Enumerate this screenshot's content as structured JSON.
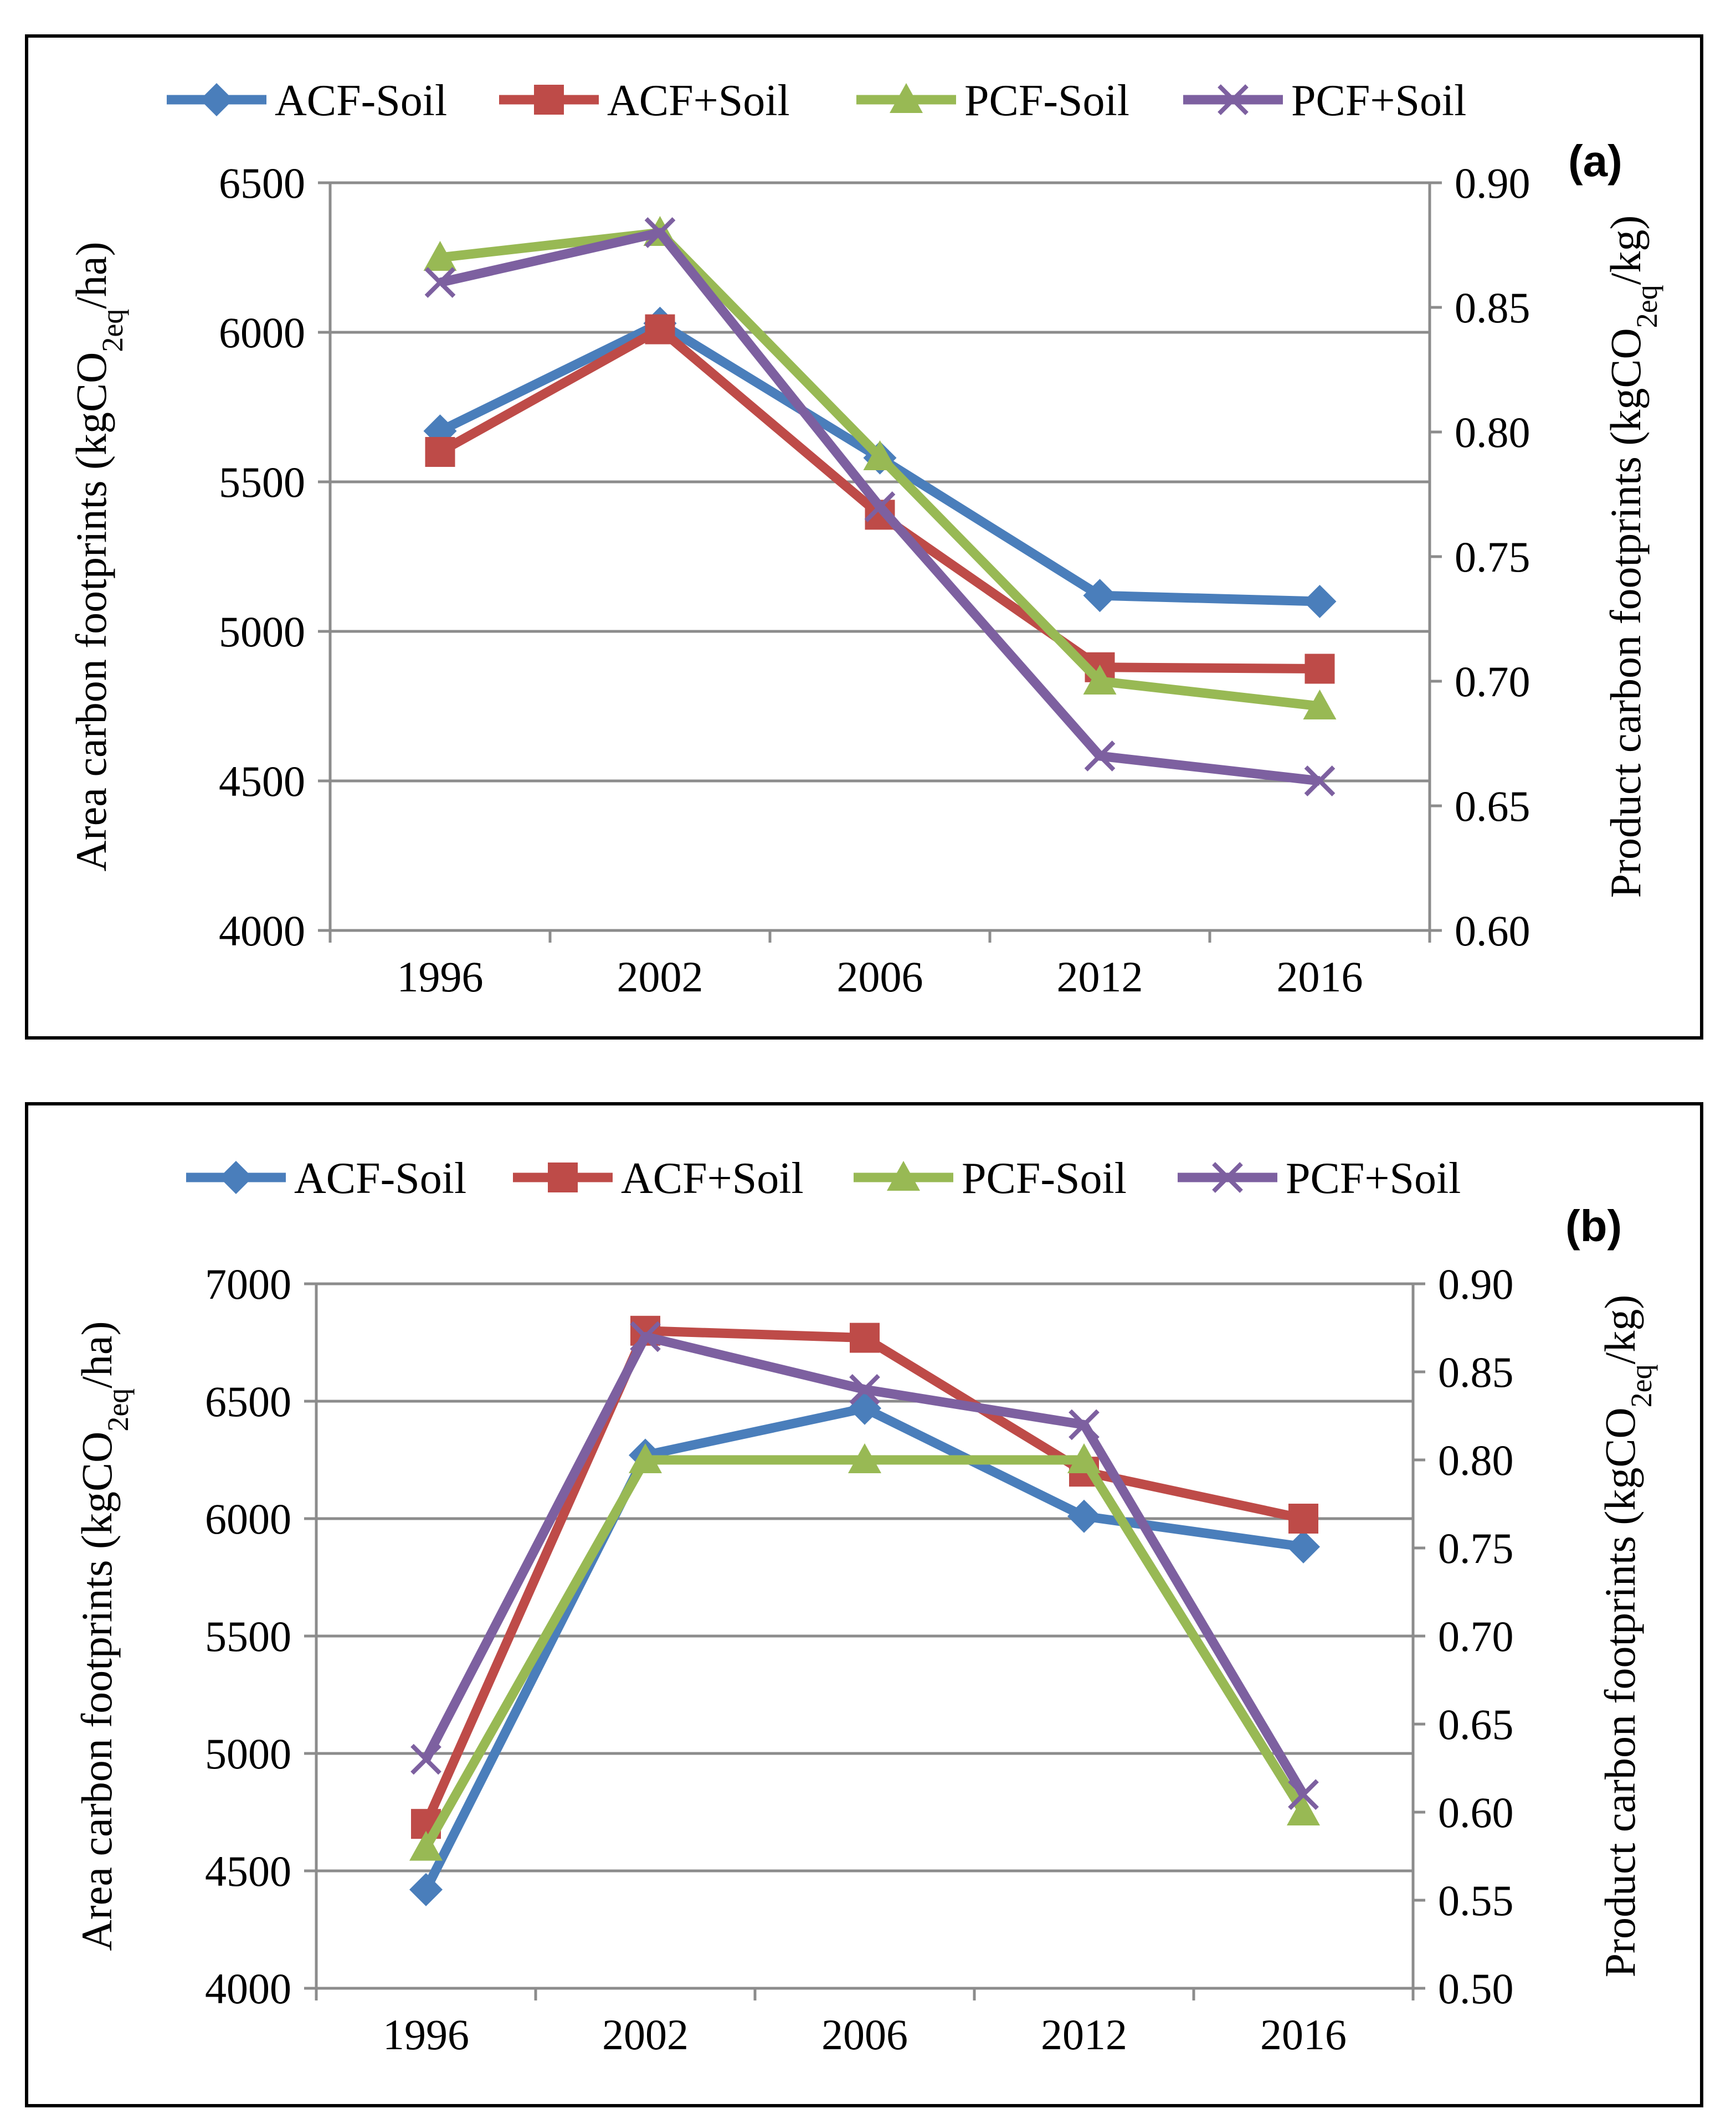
{
  "chart_data": [
    {
      "type": "line",
      "panel_label": "(a)",
      "categories": [
        "1996",
        "2002",
        "2006",
        "2012",
        "2016"
      ],
      "ylabel": "Area carbon footprints (kgCO2eq/ha)",
      "ylabel_parts": {
        "pre": "Area carbon footprints (kgCO",
        "sub": "2eq",
        "post": "/ha)"
      },
      "y2label": "Product carbon footprints (kgCO2eq/kg)",
      "y2label_parts": {
        "pre": "Product carbon footprints (kgCO",
        "sub": "2eq",
        "post": "/kg)"
      },
      "ylim": [
        4000,
        6500
      ],
      "y_ticks": [
        "4000",
        "4500",
        "5000",
        "5500",
        "6000",
        "6500"
      ],
      "y2lim": [
        0.6,
        0.9
      ],
      "y2_ticks": [
        "0.60",
        "0.65",
        "0.70",
        "0.75",
        "0.80",
        "0.85",
        "0.90"
      ],
      "legend_position": "top",
      "series": [
        {
          "name": "ACF-Soil",
          "axis": "left",
          "color": "#4a7ebb",
          "marker": "diamond",
          "values": [
            5670,
            6030,
            5580,
            5120,
            5100
          ]
        },
        {
          "name": "ACF+Soil",
          "axis": "left",
          "color": "#be4b48",
          "marker": "square",
          "values": [
            5600,
            6010,
            5390,
            4880,
            4875
          ]
        },
        {
          "name": "PCF-Soil",
          "axis": "right",
          "color": "#98b954",
          "marker": "triangle",
          "values": [
            0.87,
            0.88,
            0.79,
            0.7,
            0.69
          ]
        },
        {
          "name": "PCF+Soil",
          "axis": "right",
          "color": "#7d60a0",
          "marker": "x",
          "values": [
            0.86,
            0.88,
            0.77,
            0.67,
            0.66
          ]
        }
      ]
    },
    {
      "type": "line",
      "panel_label": "(b)",
      "categories": [
        "1996",
        "2002",
        "2006",
        "2012",
        "2016"
      ],
      "ylabel": "Area carbon footprints (kgCO2eq/ha)",
      "ylabel_parts": {
        "pre": "Area carbon footprints (kgCO",
        "sub": "2eq",
        "post": "/ha)"
      },
      "y2label": "Product carbon footprints (kgCO2eq/kg)",
      "y2label_parts": {
        "pre": "Product carbon footprints (kgCO",
        "sub": "2eq",
        "post": "/kg)"
      },
      "ylim": [
        4000,
        7000
      ],
      "y_ticks": [
        "4000",
        "4500",
        "5000",
        "5500",
        "6000",
        "6500",
        "7000"
      ],
      "y2lim": [
        0.5,
        0.9
      ],
      "y2_ticks": [
        "0.50",
        "0.55",
        "0.60",
        "0.65",
        "0.70",
        "0.75",
        "0.80",
        "0.85",
        "0.90"
      ],
      "legend_position": "top",
      "series": [
        {
          "name": "ACF-Soil",
          "axis": "left",
          "color": "#4a7ebb",
          "marker": "diamond",
          "values": [
            4420,
            6270,
            6470,
            6010,
            5880
          ]
        },
        {
          "name": "ACF+Soil",
          "axis": "left",
          "color": "#be4b48",
          "marker": "square",
          "values": [
            4700,
            6800,
            6770,
            6200,
            6000
          ]
        },
        {
          "name": "PCF-Soil",
          "axis": "right",
          "color": "#98b954",
          "marker": "triangle",
          "values": [
            0.58,
            0.8,
            0.8,
            0.8,
            0.6
          ]
        },
        {
          "name": "PCF+Soil",
          "axis": "right",
          "color": "#7d60a0",
          "marker": "x",
          "values": [
            0.63,
            0.87,
            0.84,
            0.82,
            0.61
          ]
        }
      ]
    }
  ]
}
